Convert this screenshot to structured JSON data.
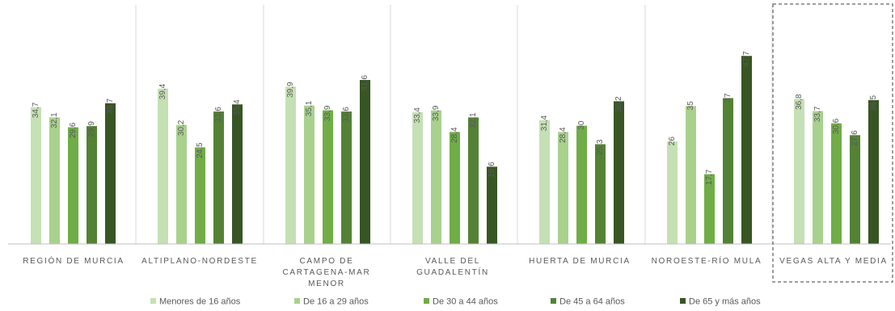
{
  "chart_data": {
    "type": "bar",
    "categories": [
      [
        "REGIÓN DE MURCIA"
      ],
      [
        "ALTIPLANO-NORDESTE"
      ],
      [
        "CAMPO DE",
        "CARTAGENA-MAR",
        "MENOR"
      ],
      [
        "VALLE DEL",
        "GUADALENTÍN"
      ],
      [
        "HUERTA DE MURCIA"
      ],
      [
        "NOROESTE-RÍO MULA"
      ],
      [
        "VEGAS ALTA Y MEDIA"
      ]
    ],
    "series": [
      {
        "name": "Menores de 16 años",
        "color": "#c5e0b4",
        "values": [
          34.7,
          39.4,
          39.9,
          33.4,
          31.4,
          26,
          36.8
        ],
        "labels": [
          "34,7",
          "39,4",
          "39,9",
          "33,4",
          "31,4",
          "26",
          "36,8"
        ]
      },
      {
        "name": "De 16 a 29 años",
        "color": "#a9d18e",
        "values": [
          32.1,
          30.2,
          35.1,
          33.9,
          28.4,
          35,
          33.7
        ],
        "labels": [
          "32,1",
          "30,2",
          "35,1",
          "33,9",
          "28,4",
          "35",
          "33,7"
        ]
      },
      {
        "name": "De 30 a 44 años",
        "color": "#70ad47",
        "values": [
          29.6,
          24.5,
          33.9,
          28.4,
          30,
          17.7,
          30.6
        ],
        "labels": [
          "29,6",
          "24,5",
          "33,9",
          "28,4",
          "30",
          "17,7",
          "30,6"
        ]
      },
      {
        "name": "De 45 a 64 años",
        "color": "#548235",
        "values": [
          29.9,
          33.6,
          33.6,
          32.1,
          25.3,
          37,
          27.6
        ],
        "labels": [
          "29,9",
          "33,6",
          "33,6",
          "32,1",
          "25,3",
          "37",
          "27,6"
        ]
      },
      {
        "name": "De 65 y más años",
        "color": "#375623",
        "values": [
          35.7,
          35.4,
          41.6,
          19.6,
          36.2,
          47.7,
          36.5
        ],
        "labels": [
          "35,7",
          "35,4",
          "41,6",
          "19,6",
          "36,2",
          "47,7",
          "36,5"
        ]
      }
    ],
    "ylim": [
      0,
      52
    ],
    "grid": false,
    "legend_position": "bottom",
    "highlighted_category": "VEGAS ALTA Y MEDIA",
    "colors": {
      "separator": "#d9d9d9",
      "axis": "#bfbfbf",
      "text": "#595959",
      "highlight_border": "#7f7f7f"
    }
  }
}
